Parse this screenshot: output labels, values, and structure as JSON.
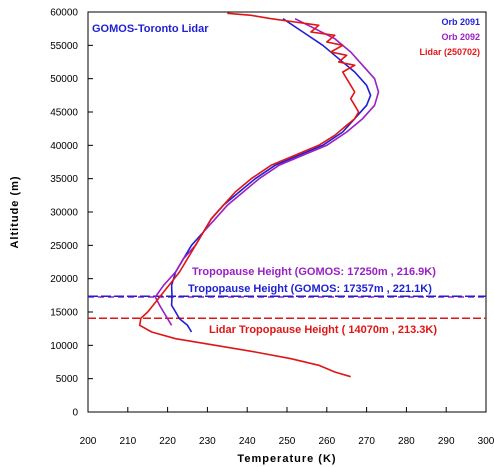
{
  "chart_data": {
    "type": "line",
    "title": "GOMOS-Toronto Lidar",
    "xlabel": "Temperature (K)",
    "ylabel": "Altitude (m)",
    "xlim": [
      200,
      300
    ],
    "ylim": [
      0,
      60000
    ],
    "x_ticks": [
      200,
      210,
      220,
      230,
      240,
      250,
      260,
      270,
      280,
      290,
      300
    ],
    "y_ticks": [
      0,
      5000,
      10000,
      15000,
      20000,
      25000,
      30000,
      35000,
      40000,
      45000,
      50000,
      55000,
      60000
    ],
    "x_tick_labels": [
      "200",
      "210",
      "220",
      "230",
      "240",
      "250",
      "260",
      "270",
      "280",
      "290",
      "300"
    ],
    "y_tick_labels": [
      "0",
      "5000",
      "10000",
      "15000",
      "20000",
      "25000",
      "30000",
      "35000",
      "40000",
      "45000",
      "50000",
      "55000",
      "60000"
    ],
    "grid": false,
    "legend_position": "top-right",
    "series": [
      {
        "name": "Orb 2091",
        "color": "#1f1fd6",
        "points": [
          [
            249,
            59000
          ],
          [
            254,
            57000
          ],
          [
            259,
            55000
          ],
          [
            263,
            53000
          ],
          [
            267,
            51000
          ],
          [
            270,
            49000
          ],
          [
            271,
            47500
          ],
          [
            270,
            46000
          ],
          [
            267,
            44000
          ],
          [
            264,
            42000
          ],
          [
            259,
            40000
          ],
          [
            253,
            38500
          ],
          [
            247,
            37000
          ],
          [
            242,
            35000
          ],
          [
            238,
            33000
          ],
          [
            234,
            31000
          ],
          [
            231,
            29000
          ],
          [
            229,
            27000
          ],
          [
            226,
            25000
          ],
          [
            224,
            23000
          ],
          [
            222,
            21000
          ],
          [
            221,
            19000
          ],
          [
            221.1,
            17357
          ],
          [
            221,
            16000
          ],
          [
            222,
            15000
          ],
          [
            223,
            14000
          ],
          [
            225,
            13000
          ],
          [
            226,
            12000
          ]
        ]
      },
      {
        "name": "Orb 2092",
        "color": "#9a1fc4",
        "points": [
          [
            252,
            59000
          ],
          [
            257,
            57500
          ],
          [
            262,
            56000
          ],
          [
            266,
            54000
          ],
          [
            269,
            52000
          ],
          [
            272,
            50000
          ],
          [
            273,
            48000
          ],
          [
            272,
            46000
          ],
          [
            269,
            44000
          ],
          [
            265,
            42000
          ],
          [
            260,
            40000
          ],
          [
            254,
            38500
          ],
          [
            248,
            37000
          ],
          [
            243,
            35000
          ],
          [
            239,
            33000
          ],
          [
            235,
            31000
          ],
          [
            232,
            29000
          ],
          [
            229,
            27000
          ],
          [
            227,
            25000
          ],
          [
            224,
            23000
          ],
          [
            222,
            21000
          ],
          [
            219,
            19000
          ],
          [
            216.9,
            17250
          ],
          [
            218,
            16000
          ],
          [
            219,
            15000
          ],
          [
            220,
            14000
          ],
          [
            221,
            13000
          ]
        ]
      },
      {
        "name": "Lidar (250702)",
        "color": "#e01515",
        "points": [
          [
            235,
            59800
          ],
          [
            241,
            59500
          ],
          [
            246,
            59000
          ],
          [
            252,
            58500
          ],
          [
            258,
            58000
          ],
          [
            256,
            57000
          ],
          [
            262,
            56500
          ],
          [
            260,
            55500
          ],
          [
            264,
            55000
          ],
          [
            261,
            54000
          ],
          [
            265,
            53500
          ],
          [
            263,
            52500
          ],
          [
            267,
            52000
          ],
          [
            264,
            51000
          ],
          [
            265,
            50000
          ],
          [
            266,
            49000
          ],
          [
            267,
            48000
          ],
          [
            266,
            47000
          ],
          [
            267,
            46000
          ],
          [
            268,
            45000
          ],
          [
            267,
            44000
          ],
          [
            265,
            43000
          ],
          [
            262,
            41500
          ],
          [
            258,
            40000
          ],
          [
            252,
            38500
          ],
          [
            246,
            37000
          ],
          [
            241,
            35000
          ],
          [
            237,
            33000
          ],
          [
            234,
            31000
          ],
          [
            231,
            29000
          ],
          [
            229,
            27000
          ],
          [
            227,
            25000
          ],
          [
            225,
            23000
          ],
          [
            223,
            21000
          ],
          [
            221,
            19500
          ],
          [
            219,
            18000
          ],
          [
            217,
            16500
          ],
          [
            215,
            15000
          ],
          [
            213.3,
            14070
          ],
          [
            213,
            13000
          ],
          [
            216,
            12000
          ],
          [
            222,
            11000
          ],
          [
            232,
            10000
          ],
          [
            242,
            9000
          ],
          [
            251,
            8000
          ],
          [
            258,
            7000
          ],
          [
            262,
            6000
          ],
          [
            266,
            5300
          ]
        ]
      }
    ],
    "annotations": [
      {
        "text": "Tropopause Height (GOMOS: 17250m , 216.9K)",
        "color": "#9a1fc4",
        "y": 17250
      },
      {
        "text": "Tropopause Height (GOMOS: 17357m , 221.1K)",
        "color": "#1f1fd6",
        "y": 17357
      },
      {
        "text": "Lidar Tropopause Height ( 14070m , 213.3K)",
        "color": "#e01515",
        "y": 14070
      }
    ],
    "horizontal_lines": [
      {
        "y": 17250,
        "color": "#9a1fc4"
      },
      {
        "y": 17357,
        "color": "#1f1fd6"
      },
      {
        "y": 14070,
        "color": "#e01515"
      }
    ]
  }
}
